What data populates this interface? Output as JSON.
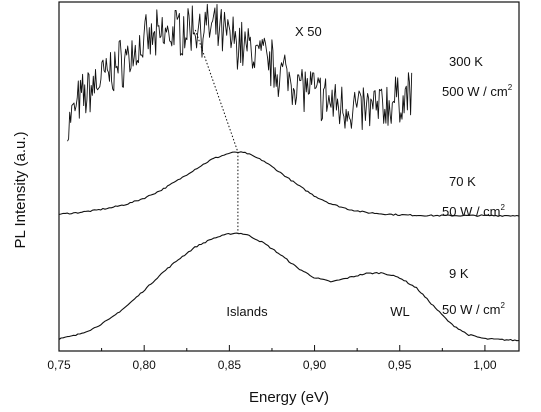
{
  "chart_data": {
    "type": "line",
    "title": "",
    "xlabel": "Energy (eV)",
    "ylabel": "PL Intensity (a.u.)",
    "xlim": [
      0.75,
      1.02
    ],
    "ylim": [
      0,
      1
    ],
    "x_ticks": [
      0.75,
      0.8,
      0.85,
      0.9,
      0.95,
      1.0
    ],
    "x_tick_labels": [
      "0,75",
      "0,80",
      "0,85",
      "0,90",
      "0,95",
      "1,00"
    ],
    "y_ticks_shown": false,
    "grid": false,
    "legend": "none",
    "multiplier_label": "X 50",
    "series": [
      {
        "key": "300K",
        "temperature": "300 K",
        "power_text": "500 W / cm",
        "power_sup": "2",
        "noisy": true,
        "x": [
          0.755,
          0.76,
          0.77,
          0.78,
          0.79,
          0.8,
          0.81,
          0.82,
          0.83,
          0.84,
          0.85,
          0.86,
          0.87,
          0.88,
          0.89,
          0.9,
          0.91,
          0.92,
          0.93,
          0.94,
          0.95,
          0.957
        ],
        "y": [
          0.64,
          0.7,
          0.76,
          0.8,
          0.84,
          0.88,
          0.9,
          0.92,
          0.93,
          0.92,
          0.9,
          0.87,
          0.84,
          0.8,
          0.77,
          0.74,
          0.71,
          0.7,
          0.69,
          0.7,
          0.72,
          0.74
        ]
      },
      {
        "key": "70K",
        "temperature": "70 K",
        "power_text": "50 W / cm",
        "power_sup": "2",
        "noisy": false,
        "x": [
          0.75,
          0.76,
          0.77,
          0.78,
          0.79,
          0.8,
          0.81,
          0.82,
          0.83,
          0.84,
          0.85,
          0.855,
          0.86,
          0.87,
          0.88,
          0.89,
          0.9,
          0.91,
          0.92,
          0.93,
          0.94,
          0.95,
          0.96,
          0.97,
          0.98,
          0.99,
          1.0,
          1.02
        ],
        "y": [
          0.392,
          0.396,
          0.402,
          0.41,
          0.421,
          0.438,
          0.461,
          0.49,
          0.521,
          0.55,
          0.567,
          0.57,
          0.567,
          0.545,
          0.511,
          0.476,
          0.444,
          0.421,
          0.406,
          0.397,
          0.393,
          0.39,
          0.389,
          0.388,
          0.388,
          0.388,
          0.388,
          0.388
        ]
      },
      {
        "key": "9K",
        "temperature": "9 K",
        "power_text": "50 W / cm",
        "power_sup": "2",
        "noisy": false,
        "x": [
          0.75,
          0.76,
          0.77,
          0.78,
          0.79,
          0.8,
          0.81,
          0.82,
          0.83,
          0.84,
          0.85,
          0.855,
          0.86,
          0.87,
          0.88,
          0.89,
          0.9,
          0.91,
          0.92,
          0.93,
          0.94,
          0.95,
          0.96,
          0.97,
          0.98,
          0.99,
          1.0,
          1.02
        ],
        "y": [
          0.035,
          0.045,
          0.064,
          0.092,
          0.13,
          0.174,
          0.221,
          0.262,
          0.298,
          0.322,
          0.336,
          0.338,
          0.334,
          0.31,
          0.276,
          0.238,
          0.21,
          0.198,
          0.21,
          0.222,
          0.224,
          0.21,
          0.18,
          0.128,
          0.078,
          0.047,
          0.035,
          0.03
        ]
      }
    ],
    "peak_guide": {
      "x": [
        0.83,
        0.855,
        0.855
      ],
      "y": [
        0.92,
        0.57,
        0.338
      ]
    },
    "annotations": [
      {
        "key": "islands",
        "text": "Islands",
        "x": 0.852,
        "y": 0.09
      },
      {
        "key": "wl",
        "text": "WL",
        "x": 0.933,
        "y": 0.09
      }
    ]
  }
}
